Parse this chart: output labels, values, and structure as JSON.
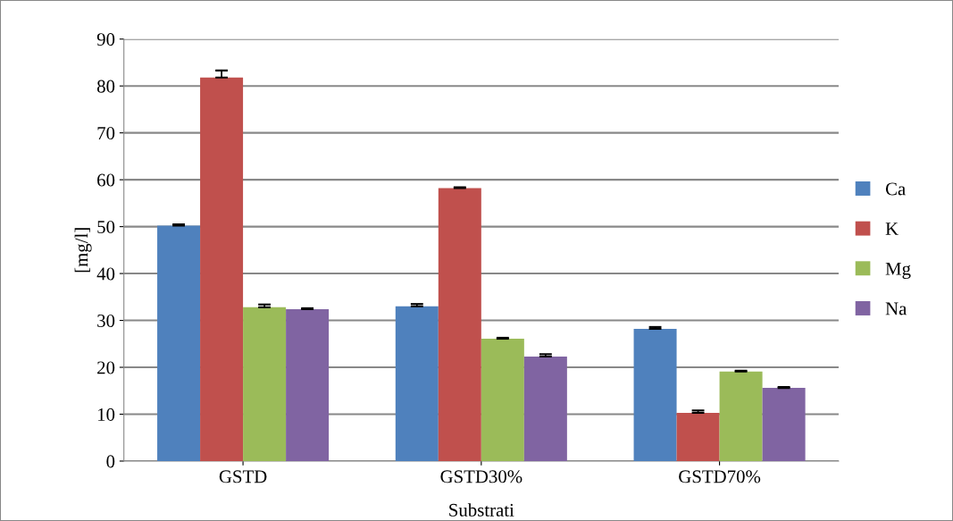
{
  "chart_data": {
    "type": "bar",
    "xlabel": "Substrati",
    "ylabel": "[mg/l]",
    "categories": [
      "GSTD",
      "GSTD30%",
      "GSTD70%"
    ],
    "series": [
      {
        "name": "Ca",
        "color": "#4f81bd",
        "values": [
          50.2,
          33.0,
          28.2
        ],
        "errors": [
          [
            50.2,
            50.5
          ],
          [
            33.0,
            33.5
          ],
          [
            28.2,
            28.6
          ]
        ]
      },
      {
        "name": "K",
        "color": "#c0504d",
        "values": [
          81.8,
          58.2,
          10.3
        ],
        "errors": [
          [
            81.8,
            83.3
          ],
          [
            58.2,
            58.4
          ],
          [
            10.3,
            10.8
          ]
        ]
      },
      {
        "name": "Mg",
        "color": "#9bbb59",
        "values": [
          32.8,
          26.1,
          19.1
        ],
        "errors": [
          [
            32.8,
            33.4
          ],
          [
            26.1,
            26.3
          ],
          [
            19.1,
            19.3
          ]
        ]
      },
      {
        "name": "Na",
        "color": "#8064a2",
        "values": [
          32.4,
          22.3,
          15.6
        ],
        "errors": [
          [
            32.4,
            32.6
          ],
          [
            22.3,
            22.8
          ],
          [
            15.6,
            15.8
          ]
        ]
      }
    ],
    "ylim": [
      0,
      90
    ],
    "yticks": [
      0,
      10,
      20,
      30,
      40,
      50,
      60,
      70,
      80,
      90
    ],
    "grid": "y",
    "legend": "right"
  }
}
